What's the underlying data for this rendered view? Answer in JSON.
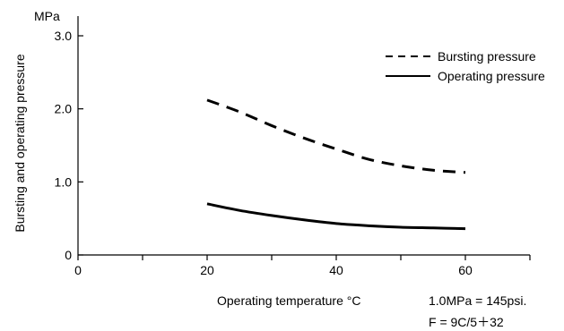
{
  "chart_data": {
    "type": "line",
    "ylabel": "Bursting and operating pressure",
    "yunit": "MPa",
    "xlabel": "Operating temperature  °C",
    "xlim": [
      0,
      70
    ],
    "ylim": [
      0,
      3.0
    ],
    "xticks": [
      0,
      20,
      40,
      60
    ],
    "xminor": [
      10,
      30,
      50,
      70
    ],
    "yticks": [
      0,
      1.0,
      2.0,
      3.0
    ],
    "ytick_labels": [
      "0",
      "1.0",
      "2.0",
      "3.0"
    ],
    "grid": false,
    "legend_position": "top-right",
    "series": [
      {
        "name": "Bursting pressure",
        "style": "dashed",
        "x": [
          20,
          25,
          30,
          35,
          40,
          45,
          50,
          55,
          60
        ],
        "y": [
          2.12,
          1.96,
          1.77,
          1.6,
          1.45,
          1.31,
          1.22,
          1.16,
          1.13
        ]
      },
      {
        "name": "Operating pressure",
        "style": "solid",
        "x": [
          20,
          25,
          30,
          35,
          40,
          45,
          50,
          55,
          60
        ],
        "y": [
          0.7,
          0.61,
          0.54,
          0.48,
          0.43,
          0.4,
          0.38,
          0.37,
          0.36
        ]
      }
    ]
  },
  "notes": {
    "conversion_mpa": "1.0MPa = 145psi.",
    "conversion_temp": "F = 9C/5＋32"
  },
  "colors": {
    "line": "#000000",
    "background": "#ffffff"
  }
}
